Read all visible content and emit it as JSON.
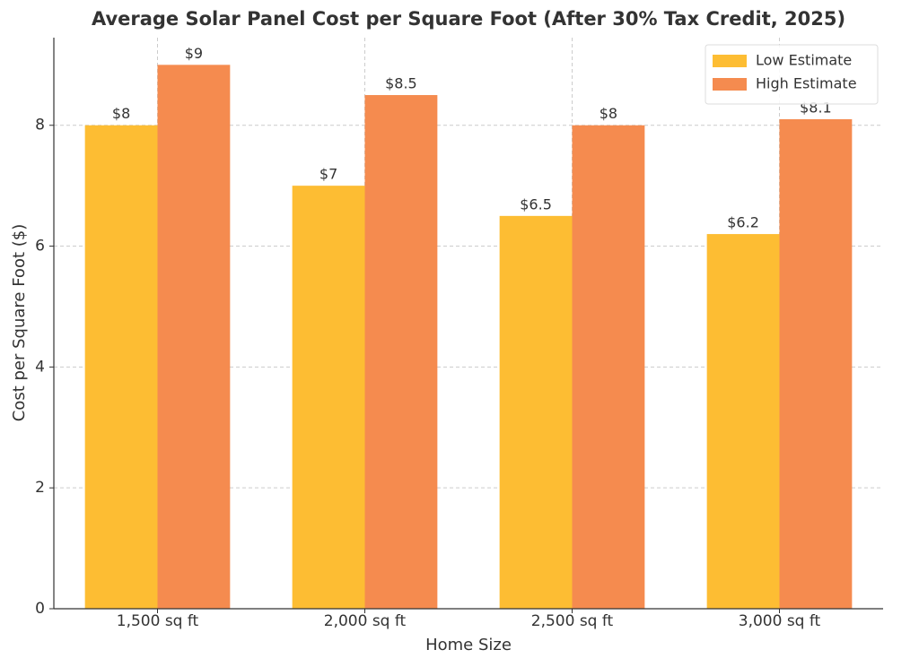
{
  "chart_data": {
    "type": "bar",
    "title": "Average Solar Panel Cost per Square Foot (After 30% Tax Credit, 2025)",
    "x_label": "Home Size",
    "y_label": "Cost per Square Foot ($)",
    "categories": [
      "1,500 sq ft",
      "2,000 sq ft",
      "2,500 sq ft",
      "3,000 sq ft"
    ],
    "series": [
      {
        "name": "Low Estimate",
        "color": "#fdbd33",
        "values": [
          8,
          7,
          6.5,
          6.2
        ],
        "value_labels": [
          "$8",
          "$7",
          "$6.5",
          "$6.2"
        ]
      },
      {
        "name": "High Estimate",
        "color": "#f58b4f",
        "values": [
          9,
          8.5,
          8,
          8.1
        ],
        "value_labels": [
          "$9",
          "$8.5",
          "$8",
          "$8.1"
        ]
      }
    ],
    "ylim": [
      0,
      9.45
    ],
    "yticks": [
      0,
      2,
      4,
      6,
      8
    ],
    "grid": true,
    "legend": "upper right"
  }
}
